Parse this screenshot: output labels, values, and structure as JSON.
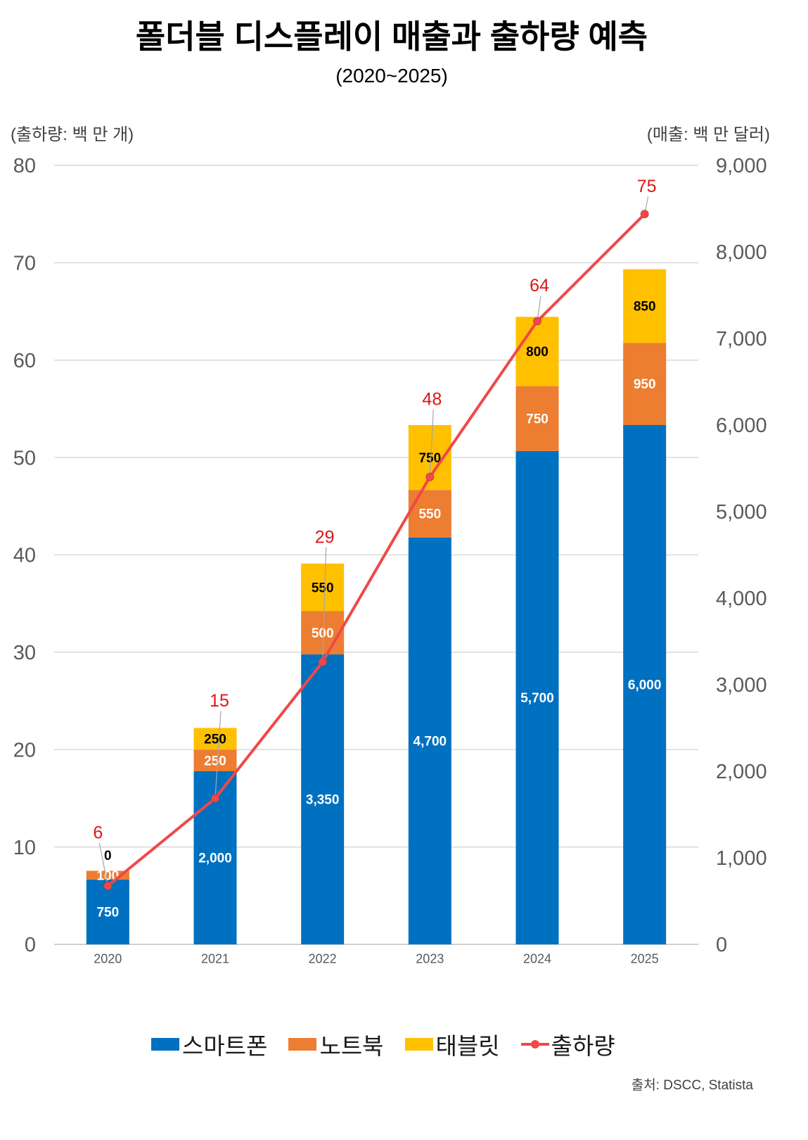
{
  "chart_data": {
    "type": "bar",
    "stacked": true,
    "title": "폴더블 디스플레이 매출과 출하량 예측",
    "subtitle": "(2020~2025)",
    "source": "출처: DSCC, Statista",
    "categories": [
      "2020",
      "2021",
      "2022",
      "2023",
      "2024",
      "2025"
    ],
    "y_left": {
      "label": "(출하량: 백 만 개)",
      "range": [
        0,
        80
      ],
      "ticks": [
        "0",
        "10",
        "20",
        "30",
        "40",
        "50",
        "60",
        "70",
        "80"
      ]
    },
    "y_right": {
      "label": "(매출: 백 만 달러)",
      "range": [
        0,
        9000
      ],
      "ticks": [
        "0",
        "1,000",
        "2,000",
        "3,000",
        "4,000",
        "5,000",
        "6,000",
        "7,000",
        "8,000",
        "9,000"
      ]
    },
    "series": [
      {
        "name": "스마트폰",
        "type": "bar",
        "axis": "right",
        "color": "#0070c0",
        "label_color": "#ffffff",
        "values": [
          750,
          2000,
          3350,
          4700,
          5700,
          6000
        ]
      },
      {
        "name": "노트북",
        "type": "bar",
        "axis": "right",
        "color": "#ed7d31",
        "label_color": "#ffffff",
        "values": [
          100,
          250,
          500,
          550,
          750,
          950
        ]
      },
      {
        "name": "태블릿",
        "type": "bar",
        "axis": "right",
        "color": "#ffc000",
        "label_color": "#000000",
        "values": [
          0,
          250,
          550,
          750,
          800,
          850
        ]
      },
      {
        "name": "출하량",
        "type": "line",
        "axis": "left",
        "color": "#f04848",
        "label_color": "#e01414",
        "values": [
          6,
          15,
          29,
          48,
          64,
          75
        ]
      }
    ],
    "grid": true,
    "data_labels": true,
    "legend": "bottom"
  }
}
